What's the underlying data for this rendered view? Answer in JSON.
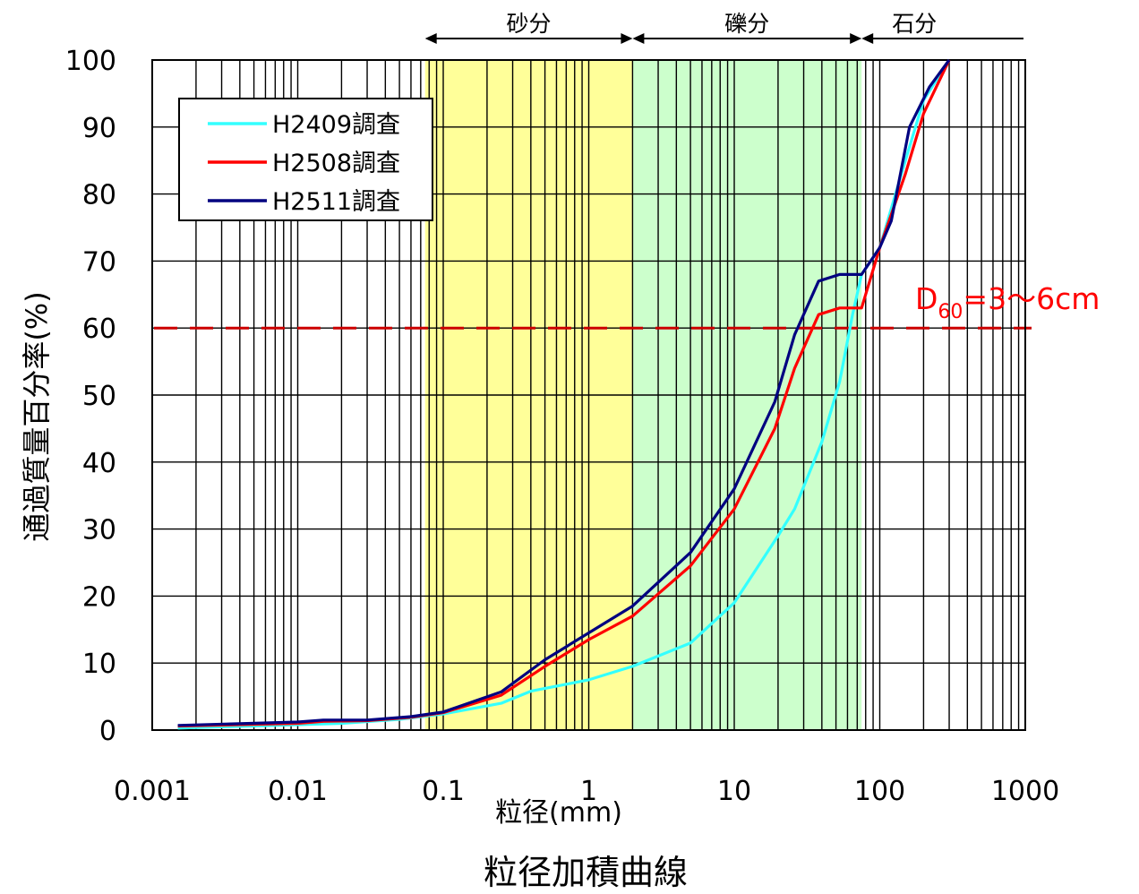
{
  "chart_data": {
    "type": "line",
    "title": "粒径加積曲線",
    "xlabel": "粒径(mm)",
    "ylabel": "通過質量百分率(%)",
    "x_scale": "log",
    "xlim": [
      0.001,
      1000
    ],
    "ylim": [
      0,
      100
    ],
    "x_ticks": [
      "0.001",
      "0.01",
      "0.1",
      "1",
      "10",
      "100",
      "1000"
    ],
    "y_ticks": [
      "0",
      "10",
      "20",
      "30",
      "40",
      "50",
      "60",
      "70",
      "80",
      "90",
      "100"
    ],
    "grid": true,
    "legend_position": "top-left",
    "bands": [
      {
        "label": "砂分",
        "from": 0.075,
        "to": 2,
        "color": "#ffff99"
      },
      {
        "label": "礫分",
        "from": 2,
        "to": 75,
        "color": "#ccffcc"
      },
      {
        "label": "石分",
        "from": 75,
        "to": 1000,
        "color": "#ffffff"
      }
    ],
    "annotation": {
      "label_main": "D",
      "label_sub": "60",
      "label_rest": "=3～6cm",
      "y": 60,
      "color": "#ff0000"
    },
    "series": [
      {
        "name": "H2409調査",
        "color": "#33ffff",
        "points": [
          [
            0.0015,
            0.3
          ],
          [
            0.01,
            0.8
          ],
          [
            0.02,
            1.0
          ],
          [
            0.05,
            1.6
          ],
          [
            0.1,
            2.4
          ],
          [
            0.25,
            4.0
          ],
          [
            0.4,
            5.8
          ],
          [
            1,
            7.5
          ],
          [
            2,
            9.5
          ],
          [
            5,
            13
          ],
          [
            10,
            19
          ],
          [
            20,
            29
          ],
          [
            26,
            33
          ],
          [
            40,
            43
          ],
          [
            53,
            52
          ],
          [
            65,
            62
          ],
          [
            75,
            68
          ],
          [
            100,
            72
          ],
          [
            150,
            85
          ],
          [
            200,
            94
          ],
          [
            300,
            100
          ]
        ]
      },
      {
        "name": "H2508調査",
        "color": "#ff0000",
        "points": [
          [
            0.0015,
            0.6
          ],
          [
            0.01,
            1.0
          ],
          [
            0.015,
            1.3
          ],
          [
            0.03,
            1.4
          ],
          [
            0.06,
            1.9
          ],
          [
            0.1,
            2.6
          ],
          [
            0.25,
            5.2
          ],
          [
            0.5,
            9.5
          ],
          [
            1,
            13.5
          ],
          [
            2,
            17
          ],
          [
            5,
            24.5
          ],
          [
            10,
            33
          ],
          [
            19,
            45
          ],
          [
            26,
            54
          ],
          [
            38,
            62
          ],
          [
            53,
            63
          ],
          [
            75,
            63
          ],
          [
            100,
            72
          ],
          [
            150,
            83
          ],
          [
            200,
            92
          ],
          [
            300,
            100
          ]
        ]
      },
      {
        "name": "H2511調査",
        "color": "#000080",
        "points": [
          [
            0.0015,
            0.7
          ],
          [
            0.01,
            1.2
          ],
          [
            0.015,
            1.5
          ],
          [
            0.03,
            1.5
          ],
          [
            0.06,
            2.0
          ],
          [
            0.1,
            2.7
          ],
          [
            0.25,
            5.7
          ],
          [
            0.5,
            10.5
          ],
          [
            1,
            14.5
          ],
          [
            2,
            18.5
          ],
          [
            5,
            26.5
          ],
          [
            10,
            36
          ],
          [
            19,
            49
          ],
          [
            26,
            59
          ],
          [
            38,
            67
          ],
          [
            53,
            68
          ],
          [
            75,
            68
          ],
          [
            100,
            72
          ],
          [
            120,
            76
          ],
          [
            160,
            90
          ],
          [
            220,
            96
          ],
          [
            300,
            100
          ]
        ]
      }
    ]
  }
}
